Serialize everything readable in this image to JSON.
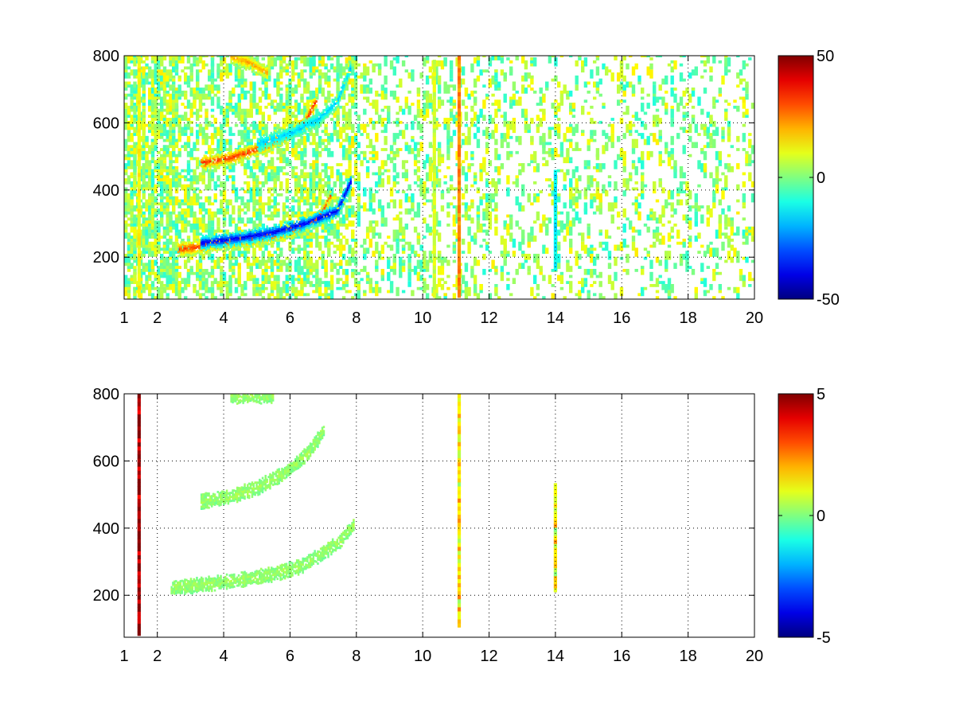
{
  "figure": {
    "background": "#ffffff",
    "grid_style": "dotted",
    "colormap": "jet"
  },
  "chart_data": [
    {
      "type": "heatmap",
      "title": "",
      "xlabel": "",
      "ylabel": "",
      "xlim": [
        1,
        20
      ],
      "ylim": [
        75,
        800
      ],
      "x_ticks": [
        1,
        2,
        4,
        6,
        8,
        10,
        12,
        14,
        16,
        18,
        20
      ],
      "x_tick_labels": [
        "1",
        "2",
        "4",
        "6",
        "8",
        "10",
        "12",
        "14",
        "16",
        "18",
        "20"
      ],
      "y_ticks": [
        200,
        400,
        600,
        800
      ],
      "y_tick_labels": [
        "200",
        "400",
        "600",
        "800"
      ],
      "grid": true,
      "colorbar": {
        "min": -50,
        "max": 50,
        "ticks": [
          50,
          0,
          -50
        ],
        "tick_labels": [
          "50",
          "0",
          "-50"
        ]
      },
      "features": [
        {
          "kind": "curve",
          "points": [
            [
              2.6,
              220
            ],
            [
              3.5,
              232
            ],
            [
              4.5,
              245
            ],
            [
              5.5,
              262
            ],
            [
              6.3,
              285
            ],
            [
              6.9,
              320
            ],
            [
              7.2,
              380
            ]
          ],
          "value": 32
        },
        {
          "kind": "curve",
          "points": [
            [
              3.3,
              240
            ],
            [
              4.5,
              255
            ],
            [
              5.5,
              272
            ],
            [
              6.5,
              300
            ],
            [
              7.4,
              335
            ],
            [
              7.8,
              420
            ]
          ],
          "value": -40
        },
        {
          "kind": "curve",
          "points": [
            [
              3.3,
              478
            ],
            [
              4.2,
              493
            ],
            [
              5.0,
              520
            ],
            [
              5.8,
              555
            ],
            [
              6.4,
              595
            ],
            [
              6.8,
              670
            ]
          ],
          "value": 34
        },
        {
          "kind": "curve",
          "points": [
            [
              5.0,
              535
            ],
            [
              6.0,
              567
            ],
            [
              6.8,
              605
            ],
            [
              7.4,
              660
            ],
            [
              7.8,
              760
            ]
          ],
          "value": -18
        },
        {
          "kind": "curve",
          "points": [
            [
              4.2,
              795
            ],
            [
              4.8,
              775
            ],
            [
              5.3,
              745
            ]
          ],
          "value": 22
        },
        {
          "kind": "stripe",
          "x": 1.45,
          "y_from": 80,
          "y_to": 800,
          "value": 12
        },
        {
          "kind": "stripe",
          "x": 10.35,
          "y_from": 80,
          "y_to": 780,
          "value": 8
        },
        {
          "kind": "stripe",
          "x": 11.1,
          "y_from": 80,
          "y_to": 800,
          "value": 24
        },
        {
          "kind": "stripe",
          "x": 14.0,
          "y_from": 160,
          "y_to": 450,
          "value": -14
        }
      ]
    },
    {
      "type": "heatmap",
      "title": "",
      "xlabel": "",
      "ylabel": "",
      "xlim": [
        1,
        20
      ],
      "ylim": [
        75,
        800
      ],
      "x_ticks": [
        1,
        2,
        4,
        6,
        8,
        10,
        12,
        14,
        16,
        18,
        20
      ],
      "x_tick_labels": [
        "1",
        "2",
        "4",
        "6",
        "8",
        "10",
        "12",
        "14",
        "16",
        "18",
        "20"
      ],
      "y_ticks": [
        200,
        400,
        600,
        800
      ],
      "y_tick_labels": [
        "200",
        "400",
        "600",
        "800"
      ],
      "grid": true,
      "colorbar": {
        "min": -5,
        "max": 5,
        "ticks": [
          5,
          0,
          -5
        ],
        "tick_labels": [
          "5",
          "0",
          "-5"
        ]
      },
      "features": [
        {
          "kind": "curve",
          "points": [
            [
              2.4,
              220
            ],
            [
              3.5,
              232
            ],
            [
              4.5,
              245
            ],
            [
              5.5,
              262
            ],
            [
              6.3,
              285
            ],
            [
              6.9,
              320
            ],
            [
              7.5,
              360
            ],
            [
              7.9,
              410
            ]
          ],
          "value": 0.3
        },
        {
          "kind": "curve",
          "points": [
            [
              3.3,
              478
            ],
            [
              4.2,
              493
            ],
            [
              5.0,
              520
            ],
            [
              5.8,
              560
            ],
            [
              6.5,
              620
            ],
            [
              7.0,
              690
            ]
          ],
          "value": 0.3
        },
        {
          "kind": "curve",
          "points": [
            [
              4.2,
              790
            ],
            [
              5.0,
              792
            ],
            [
              5.5,
              795
            ]
          ],
          "value": 0.3
        },
        {
          "kind": "stripe",
          "x": 1.45,
          "y_from": 80,
          "y_to": 790,
          "value": 4.8
        },
        {
          "kind": "stripe",
          "x": 11.1,
          "y_from": 105,
          "y_to": 795,
          "value": 1.4
        },
        {
          "kind": "stripe",
          "x": 14.0,
          "y_from": 210,
          "y_to": 530,
          "value": 1.2
        }
      ]
    }
  ]
}
